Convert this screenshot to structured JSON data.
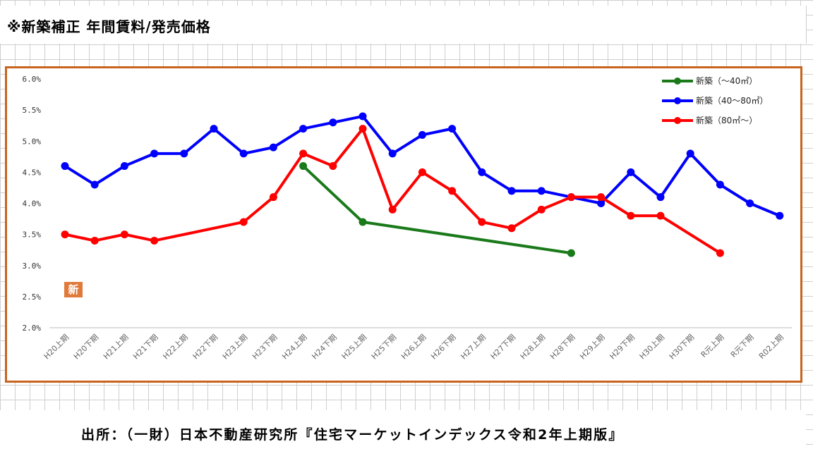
{
  "title": "※新築補正 年間賃料/発売価格",
  "source": "出所：（一財）日本不動産研究所『住宅マーケットインデックス令和2年上期版』",
  "badge": "新",
  "chart_data": {
    "type": "line",
    "categories": [
      "H20上期",
      "H20下期",
      "H21上期",
      "H21下期",
      "H22上期",
      "H22下期",
      "H23上期",
      "H23下期",
      "H24上期",
      "H24下期",
      "H25上期",
      "H25下期",
      "H26上期",
      "H26下期",
      "H27上期",
      "H27下期",
      "H28上期",
      "H28下期",
      "H29上期",
      "H29下期",
      "H30上期",
      "H30下期",
      "R元上期",
      "R元下期",
      "R02上期"
    ],
    "y_ticks": [
      "6.0%",
      "5.5%",
      "5.0%",
      "4.5%",
      "4.0%",
      "3.5%",
      "3.0%",
      "2.5%",
      "2.0%"
    ],
    "ylim": [
      2.0,
      6.0
    ],
    "legend_position": "top-right",
    "series": [
      {
        "name": "新築（～40㎡）",
        "color": "#1a7a1a",
        "values": [
          null,
          null,
          null,
          null,
          null,
          null,
          null,
          null,
          4.6,
          null,
          3.7,
          null,
          null,
          null,
          null,
          null,
          null,
          3.2,
          null,
          null,
          null,
          null,
          null,
          null,
          null
        ]
      },
      {
        "name": "新築（40～80㎡）",
        "color": "#0000ff",
        "values": [
          4.6,
          4.3,
          4.6,
          4.8,
          4.8,
          5.2,
          4.8,
          4.9,
          5.2,
          5.3,
          5.4,
          4.8,
          5.1,
          5.2,
          4.5,
          4.2,
          4.2,
          4.1,
          4.0,
          4.5,
          4.1,
          4.8,
          4.3,
          4.0,
          3.8
        ]
      },
      {
        "name": "新築（80㎡～）",
        "color": "#ff0000",
        "values": [
          3.5,
          3.4,
          3.5,
          3.4,
          null,
          null,
          3.7,
          4.1,
          4.8,
          4.6,
          5.2,
          3.9,
          4.5,
          4.2,
          3.7,
          3.6,
          3.9,
          4.1,
          4.1,
          3.8,
          3.8,
          null,
          3.2,
          null,
          null
        ]
      }
    ]
  }
}
